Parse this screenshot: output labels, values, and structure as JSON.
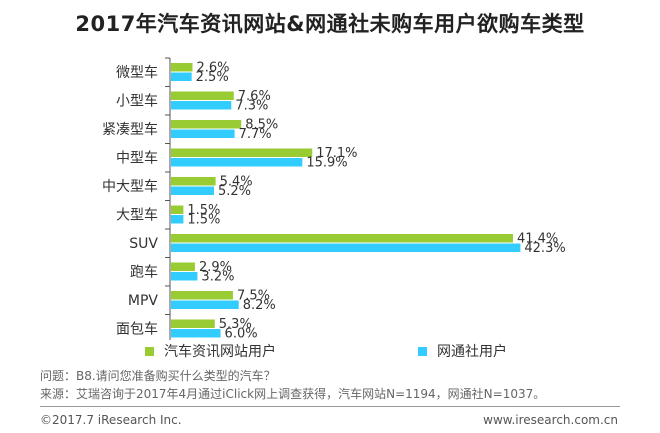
{
  "title": "2017年汽车资讯网站&网通社未购车用户欲购车类型",
  "chart_data": {
    "type": "bar",
    "orientation": "horizontal",
    "categories": [
      "微型车",
      "小型车",
      "紧凑型车",
      "中型车",
      "中大型车",
      "大型车",
      "SUV",
      "跑车",
      "MPV",
      "面包车"
    ],
    "series": [
      {
        "name": "汽车资讯网站用户",
        "color": "#99cc33",
        "values": [
          2.6,
          7.6,
          8.5,
          17.1,
          5.4,
          1.5,
          41.4,
          2.9,
          7.5,
          5.3
        ],
        "labels": [
          "2.6%",
          "7.6%",
          "8.5%",
          "17.1%",
          "5.4%",
          "1.5%",
          "41.4%",
          "2.9%",
          "7.5%",
          "5.3%"
        ]
      },
      {
        "name": "网通社用户",
        "color": "#33ccff",
        "values": [
          2.5,
          7.3,
          7.7,
          15.9,
          5.2,
          1.5,
          42.3,
          3.2,
          8.2,
          6.0
        ],
        "labels": [
          "2.5%",
          "7.3%",
          "7.7%",
          "15.9%",
          "5.2%",
          "1.5%",
          "42.3%",
          "3.2%",
          "8.2%",
          "6.0%"
        ]
      }
    ],
    "xlim": [
      0,
      45
    ],
    "grid": false,
    "legend_position": "bottom"
  },
  "notes": {
    "question": "问题：B8.请问您准备购买什么类型的汽车？",
    "source": "来源：艾瑞咨询于2017年4月通过iClick网上调查获得，汽车网站N=1194，网通社N=1037。"
  },
  "footer": {
    "copyright": "©2017.7 iResearch Inc.",
    "website": "www.iresearch.com.cn"
  }
}
